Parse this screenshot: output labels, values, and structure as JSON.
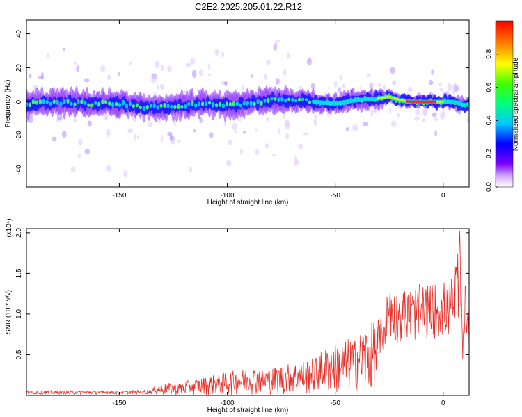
{
  "title": "C2E2.2025.205.01.22.R12",
  "chart_data": [
    {
      "type": "heatmap",
      "xlabel": "Height of straight line (km)",
      "ylabel": "Frequency (Hz)",
      "xlim": [
        -193,
        12
      ],
      "ylim": [
        -50,
        48
      ],
      "xticks": [
        -150,
        -100,
        -50,
        0
      ],
      "yticks": [
        -40,
        -20,
        0,
        20,
        40
      ],
      "colorbar": {
        "label": "Normalized spectral amplitude",
        "range": [
          0,
          1
        ],
        "ticks": [
          "0.0",
          "0.2",
          "0.4",
          "0.6",
          "0.8"
        ],
        "colormap": "rainbow-white-violet-blue-cyan-green-yellow-red"
      },
      "ridge": {
        "x": [
          -193,
          -180,
          -165,
          -150,
          -140,
          -130,
          -120,
          -110,
          -100,
          -90,
          -80,
          -70,
          -60,
          -50,
          -40,
          -30,
          -25,
          -20,
          -15,
          -10,
          -5,
          0,
          5,
          10,
          12
        ],
        "frequency": [
          -1,
          0,
          -1,
          -1,
          -3,
          -3,
          -2,
          -1,
          -2,
          -1,
          1,
          1,
          0,
          -1,
          1,
          2,
          3,
          1,
          0,
          0,
          0,
          0,
          0,
          -2,
          -1
        ]
      }
    },
    {
      "type": "line",
      "xlabel": "Height of straight line (km)",
      "ylabel": "SNR (10 * v/v)",
      "yscale_label": "(x10⁴)",
      "xlim": [
        -193,
        12
      ],
      "ylim": [
        0,
        2.05
      ],
      "xticks": [
        -150,
        -100,
        -50,
        0
      ],
      "yticks": [
        0.5,
        1.0,
        1.5,
        2.0
      ],
      "ytick_labels": [
        "0.5",
        "1.0",
        "1.5",
        "2.0"
      ],
      "color": "#e8302a",
      "envelope": {
        "x": [
          -193,
          -170,
          -150,
          -135,
          -133,
          -120,
          -110,
          -100,
          -90,
          -80,
          -70,
          -60,
          -55,
          -50,
          -45,
          -40,
          -35,
          -30,
          -27,
          -25,
          -22,
          -20,
          -15,
          -10,
          -5,
          0,
          3,
          5,
          7,
          8,
          9,
          10,
          11,
          12
        ],
        "y": [
          0.05,
          0.05,
          0.05,
          0.06,
          0.12,
          0.15,
          0.2,
          0.25,
          0.3,
          0.3,
          0.35,
          0.4,
          0.5,
          0.55,
          0.6,
          0.65,
          0.75,
          0.85,
          1.0,
          1.3,
          1.15,
          1.2,
          1.2,
          1.25,
          1.25,
          1.3,
          1.3,
          1.4,
          1.7,
          1.9,
          0.5,
          1.5,
          1.2,
          1.0
        ]
      }
    }
  ]
}
